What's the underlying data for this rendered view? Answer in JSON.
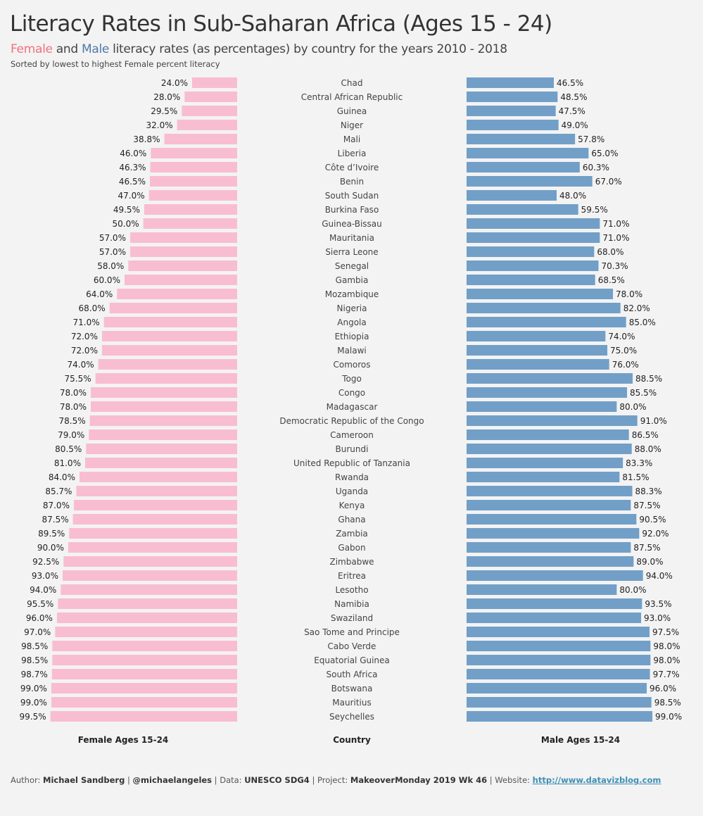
{
  "header": {
    "title": "Literacy Rates in Sub-Saharan Africa (Ages 15 - 24)",
    "subtitle_female": "Female",
    "subtitle_and": " and ",
    "subtitle_male": "Male",
    "subtitle_rest": " literacy rates (as percentages) by country for the years 2010 - 2018",
    "note": "Sorted by lowest to highest Female percent literacy"
  },
  "colors": {
    "female_bar": "#f9bdd2",
    "male_bar": "#729fc7",
    "female_text": "#f0727d",
    "male_text": "#4e79a7",
    "background": "#f3f3f3"
  },
  "chart_data": {
    "type": "bar",
    "orientation": "horizontal-butterfly",
    "title": "Literacy Rates in Sub-Saharan Africa (Ages 15 - 24)",
    "xlabel_left": "Female Ages 15-24",
    "xlabel_center": "Country",
    "xlabel_right": "Male Ages 15-24",
    "xlim": [
      0,
      100
    ],
    "grid": false,
    "categories": [
      "Chad",
      "Central African Republic",
      "Guinea",
      "Niger",
      "Mali",
      "Liberia",
      "Côte d’Ivoire",
      "Benin",
      "South Sudan",
      "Burkina Faso",
      "Guinea-Bissau",
      "Mauritania",
      "Sierra Leone",
      "Senegal",
      "Gambia",
      "Mozambique",
      "Nigeria",
      "Angola",
      "Ethiopia",
      "Malawi",
      "Comoros",
      "Togo",
      "Congo",
      "Madagascar",
      "Democratic Republic of the Congo",
      "Cameroon",
      "Burundi",
      "United Republic of Tanzania",
      "Rwanda",
      "Uganda",
      "Kenya",
      "Ghana",
      "Zambia",
      "Gabon",
      "Zimbabwe",
      "Eritrea",
      "Lesotho",
      "Namibia",
      "Swaziland",
      "Sao Tome and Principe",
      "Cabo Verde",
      "Equatorial Guinea",
      "South Africa",
      "Botswana",
      "Mauritius",
      "Seychelles"
    ],
    "series": [
      {
        "name": "Female",
        "values": [
          24.0,
          28.0,
          29.5,
          32.0,
          38.8,
          46.0,
          46.3,
          46.5,
          47.0,
          49.5,
          50.0,
          57.0,
          57.0,
          58.0,
          60.0,
          64.0,
          68.0,
          71.0,
          72.0,
          72.0,
          74.0,
          75.5,
          78.0,
          78.0,
          78.5,
          79.0,
          80.5,
          81.0,
          84.0,
          85.7,
          87.0,
          87.5,
          89.5,
          90.0,
          92.5,
          93.0,
          94.0,
          95.5,
          96.0,
          97.0,
          98.5,
          98.5,
          98.7,
          99.0,
          99.0,
          99.5
        ]
      },
      {
        "name": "Male",
        "values": [
          46.5,
          48.5,
          47.5,
          49.0,
          57.8,
          65.0,
          60.3,
          67.0,
          48.0,
          59.5,
          71.0,
          71.0,
          68.0,
          70.3,
          68.5,
          78.0,
          82.0,
          85.0,
          74.0,
          75.0,
          76.0,
          88.5,
          85.5,
          80.0,
          91.0,
          86.5,
          88.0,
          83.3,
          81.5,
          88.3,
          87.5,
          90.5,
          92.0,
          87.5,
          89.0,
          94.0,
          80.0,
          93.5,
          93.0,
          97.5,
          98.0,
          98.0,
          97.7,
          96.0,
          98.5,
          99.0
        ]
      }
    ],
    "value_format": "{v}%"
  },
  "footer": {
    "author_label": "Author: ",
    "author": "Michael Sandberg",
    "sep1": " | ",
    "handle": "@michaelangeles",
    "sep2": " | Data: ",
    "data_source": "UNESCO SDG4",
    "sep3": " | Project: ",
    "project": "MakeoverMonday 2019 Wk 46",
    "sep4": " | Website: ",
    "website": "http://www.datavizblog.com"
  }
}
